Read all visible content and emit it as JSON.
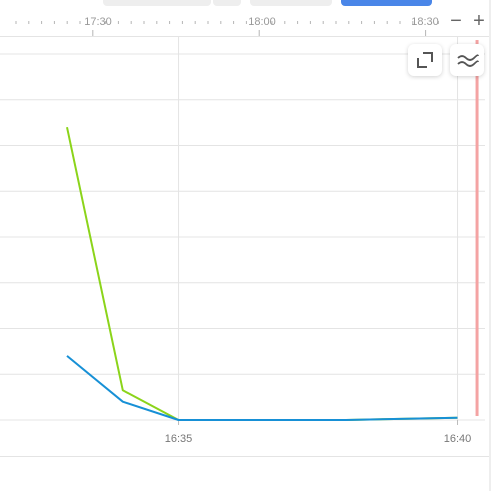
{
  "timeline": {
    "labels": [
      "17:30",
      "18:00",
      "18:30"
    ],
    "zoom_out_label": "−",
    "zoom_in_label": "+"
  },
  "controls": {
    "expand_icon": "expand-icon",
    "series_icon": "approx-lines-icon"
  },
  "colors": {
    "series_a": "#8bd41a",
    "series_b": "#1790d6",
    "marker": "#f4a3a3",
    "grid": "#e4e4e4"
  },
  "chart_data": {
    "type": "line",
    "x_ticks": [
      "16:35",
      "16:40"
    ],
    "grid": true,
    "series": [
      {
        "color": "#8bd41a",
        "points": [
          [
            0,
            6.4
          ],
          [
            1,
            0.65
          ],
          [
            2,
            0
          ],
          [
            5,
            0
          ],
          [
            7,
            0.05
          ]
        ]
      },
      {
        "color": "#1790d6",
        "points": [
          [
            0,
            1.4
          ],
          [
            1,
            0.4
          ],
          [
            2,
            0
          ],
          [
            5,
            0
          ],
          [
            7,
            0.05
          ]
        ]
      }
    ],
    "xlim": [
      -1.2,
      7.6
    ],
    "ylim": [
      0,
      8
    ],
    "current_time_marker": 7.35
  }
}
